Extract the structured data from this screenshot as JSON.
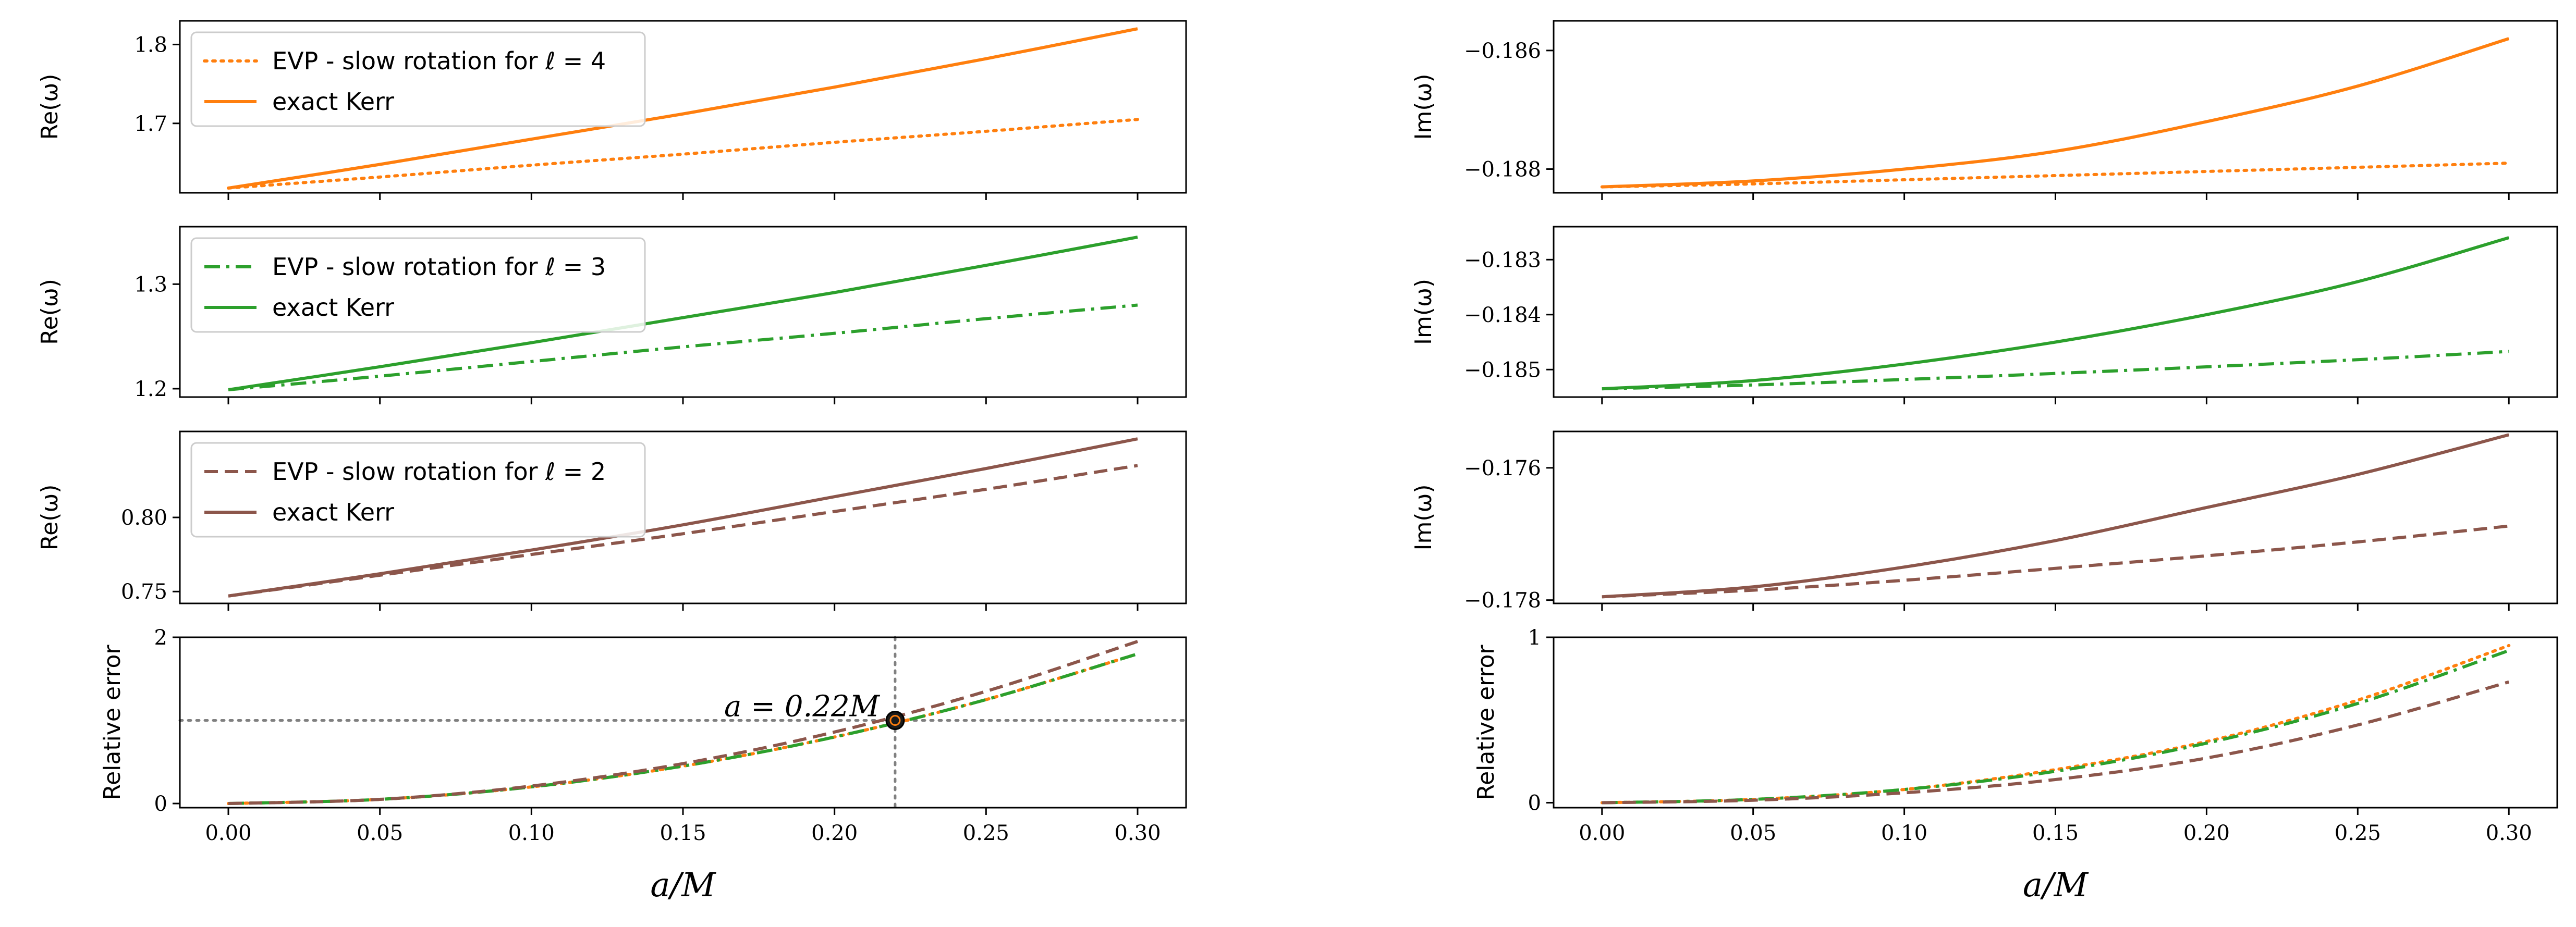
{
  "colors": {
    "l4": "#ff7f0e",
    "l3": "#2ca02c",
    "l2": "#8c564b",
    "ref": "#808080",
    "point": "#1a1a1a"
  },
  "chart_data": [
    {
      "id": "re_l4",
      "type": "line",
      "ylabel": "Re(ω)",
      "xlim": [
        -0.016,
        0.316
      ],
      "ylim": [
        1.612,
        1.83
      ],
      "yticks": [
        1.7,
        1.8
      ],
      "ytick_labels": [
        "1.7",
        "1.8"
      ],
      "legend": [
        {
          "label": "EVP - slow rotation for ℓ = 4",
          "style": "dotted",
          "color_key": "l4"
        },
        {
          "label": "exact Kerr",
          "style": "solid",
          "color_key": "l4"
        }
      ],
      "legend_position": "top-left",
      "series": [
        {
          "name": "EVP - slow rotation for ℓ = 4",
          "style": "dotted",
          "color_key": "l4",
          "x": [
            0.0,
            0.05,
            0.1,
            0.15,
            0.2,
            0.25,
            0.3
          ],
          "y": [
            1.618,
            1.632,
            1.647,
            1.661,
            1.676,
            1.69,
            1.705
          ]
        },
        {
          "name": "exact Kerr",
          "style": "solid",
          "color_key": "l4",
          "x": [
            0.0,
            0.05,
            0.1,
            0.15,
            0.2,
            0.25,
            0.3
          ],
          "y": [
            1.618,
            1.648,
            1.68,
            1.712,
            1.746,
            1.782,
            1.82
          ]
        }
      ]
    },
    {
      "id": "im_l4",
      "type": "line",
      "ylabel": "Im(ω)",
      "xlim": [
        -0.016,
        0.316
      ],
      "ylim": [
        -0.1884,
        -0.1855
      ],
      "yticks": [
        -0.188,
        -0.186
      ],
      "ytick_labels": [
        "−0.188",
        "−0.186"
      ],
      "series": [
        {
          "name": "EVP - slow rotation for ℓ = 4",
          "style": "dotted",
          "color_key": "l4",
          "x": [
            0.0,
            0.05,
            0.1,
            0.15,
            0.2,
            0.25,
            0.3
          ],
          "y": [
            -0.1883,
            -0.18825,
            -0.18818,
            -0.18811,
            -0.18804,
            -0.18797,
            -0.1879
          ]
        },
        {
          "name": "exact Kerr",
          "style": "solid",
          "color_key": "l4",
          "x": [
            0.0,
            0.05,
            0.1,
            0.15,
            0.2,
            0.25,
            0.3
          ],
          "y": [
            -0.1883,
            -0.1882,
            -0.188,
            -0.1877,
            -0.1872,
            -0.1866,
            -0.1858
          ]
        }
      ]
    },
    {
      "id": "re_l3",
      "type": "line",
      "ylabel": "Re(ω)",
      "xlim": [
        -0.016,
        0.316
      ],
      "ylim": [
        1.192,
        1.355
      ],
      "yticks": [
        1.2,
        1.3
      ],
      "ytick_labels": [
        "1.2",
        "1.3"
      ],
      "legend": [
        {
          "label": "EVP - slow rotation for ℓ = 3",
          "style": "dashdot",
          "color_key": "l3"
        },
        {
          "label": "exact Kerr",
          "style": "solid",
          "color_key": "l3"
        }
      ],
      "legend_position": "top-left",
      "series": [
        {
          "name": "EVP - slow rotation for ℓ = 3",
          "style": "dashdot",
          "color_key": "l3",
          "x": [
            0.0,
            0.05,
            0.1,
            0.15,
            0.2,
            0.25,
            0.3
          ],
          "y": [
            1.199,
            1.212,
            1.226,
            1.24,
            1.253,
            1.267,
            1.28
          ]
        },
        {
          "name": "exact Kerr",
          "style": "solid",
          "color_key": "l3",
          "x": [
            0.0,
            0.05,
            0.1,
            0.15,
            0.2,
            0.25,
            0.3
          ],
          "y": [
            1.199,
            1.221,
            1.244,
            1.268,
            1.292,
            1.318,
            1.345
          ]
        }
      ]
    },
    {
      "id": "im_l3",
      "type": "line",
      "ylabel": "Im(ω)",
      "xlim": [
        -0.016,
        0.316
      ],
      "ylim": [
        -0.1855,
        -0.1824
      ],
      "yticks": [
        -0.185,
        -0.184,
        -0.183
      ],
      "ytick_labels": [
        "−0.185",
        "−0.184",
        "−0.183"
      ],
      "series": [
        {
          "name": "EVP - slow rotation for ℓ = 3",
          "style": "dashdot",
          "color_key": "l3",
          "x": [
            0.0,
            0.05,
            0.1,
            0.15,
            0.2,
            0.25,
            0.3
          ],
          "y": [
            -0.18535,
            -0.18528,
            -0.18518,
            -0.18507,
            -0.18495,
            -0.18482,
            -0.18467
          ]
        },
        {
          "name": "exact Kerr",
          "style": "solid",
          "color_key": "l3",
          "x": [
            0.0,
            0.05,
            0.1,
            0.15,
            0.2,
            0.25,
            0.3
          ],
          "y": [
            -0.18535,
            -0.1852,
            -0.1849,
            -0.1845,
            -0.184,
            -0.1834,
            -0.1826
          ]
        }
      ]
    },
    {
      "id": "re_l2",
      "type": "line",
      "ylabel": "Re(ω)",
      "xlim": [
        -0.016,
        0.316
      ],
      "ylim": [
        0.742,
        0.858
      ],
      "yticks": [
        0.75,
        0.8
      ],
      "ytick_labels": [
        "0.75",
        "0.80"
      ],
      "legend": [
        {
          "label": "EVP - slow rotation for ℓ = 2",
          "style": "dashed",
          "color_key": "l2"
        },
        {
          "label": "exact Kerr",
          "style": "solid",
          "color_key": "l2"
        }
      ],
      "legend_position": "top-left",
      "series": [
        {
          "name": "EVP - slow rotation for ℓ = 2",
          "style": "dashed",
          "color_key": "l2",
          "x": [
            0.0,
            0.05,
            0.1,
            0.15,
            0.2,
            0.25,
            0.3
          ],
          "y": [
            0.747,
            0.761,
            0.775,
            0.789,
            0.804,
            0.819,
            0.835
          ]
        },
        {
          "name": "exact Kerr",
          "style": "solid",
          "color_key": "l2",
          "x": [
            0.0,
            0.05,
            0.1,
            0.15,
            0.2,
            0.25,
            0.3
          ],
          "y": [
            0.747,
            0.762,
            0.778,
            0.795,
            0.814,
            0.833,
            0.853
          ]
        }
      ]
    },
    {
      "id": "im_l2",
      "type": "line",
      "ylabel": "Im(ω)",
      "xlim": [
        -0.016,
        0.316
      ],
      "ylim": [
        -0.17805,
        -0.17545
      ],
      "yticks": [
        -0.178,
        -0.176
      ],
      "ytick_labels": [
        "−0.178",
        "−0.176"
      ],
      "series": [
        {
          "name": "EVP - slow rotation for ℓ = 2",
          "style": "dashed",
          "color_key": "l2",
          "x": [
            0.0,
            0.05,
            0.1,
            0.15,
            0.2,
            0.25,
            0.3
          ],
          "y": [
            -0.17795,
            -0.17785,
            -0.1777,
            -0.17752,
            -0.17733,
            -0.17712,
            -0.17688
          ]
        },
        {
          "name": "exact Kerr",
          "style": "solid",
          "color_key": "l2",
          "x": [
            0.0,
            0.05,
            0.1,
            0.15,
            0.2,
            0.25,
            0.3
          ],
          "y": [
            -0.17795,
            -0.1778,
            -0.1775,
            -0.1771,
            -0.1766,
            -0.1761,
            -0.1755
          ]
        }
      ]
    },
    {
      "id": "relerr_re",
      "type": "line",
      "ylabel": "Relative error",
      "xlabel": "a/M",
      "xlim": [
        -0.016,
        0.316
      ],
      "ylim": [
        -0.05,
        2.0
      ],
      "yticks": [
        0,
        2
      ],
      "ytick_labels": [
        "0",
        "2"
      ],
      "xticks": [
        0.0,
        0.05,
        0.1,
        0.15,
        0.2,
        0.25,
        0.3
      ],
      "xtick_labels": [
        "0.00",
        "0.05",
        "0.10",
        "0.15",
        "0.20",
        "0.25",
        "0.30"
      ],
      "reference_lines": {
        "hline_y": 1.0,
        "vline_x": 0.22
      },
      "annotation": {
        "text": "a = 0.22M",
        "x": 0.22,
        "y": 1.0
      },
      "series": [
        {
          "name": "ℓ = 4",
          "style": "dotted",
          "color_key": "l4",
          "x": [
            0.0,
            0.05,
            0.1,
            0.15,
            0.2,
            0.25,
            0.3
          ],
          "y": [
            0.0,
            0.05,
            0.2,
            0.45,
            0.8,
            1.25,
            1.8
          ]
        },
        {
          "name": "ℓ = 3",
          "style": "dashdot",
          "color_key": "l3",
          "x": [
            0.0,
            0.05,
            0.1,
            0.15,
            0.2,
            0.25,
            0.3
          ],
          "y": [
            0.0,
            0.05,
            0.2,
            0.45,
            0.8,
            1.25,
            1.8
          ]
        },
        {
          "name": "ℓ = 2",
          "style": "dashed",
          "color_key": "l2",
          "x": [
            0.0,
            0.05,
            0.1,
            0.15,
            0.2,
            0.25,
            0.3
          ],
          "y": [
            0.0,
            0.05,
            0.21,
            0.48,
            0.86,
            1.35,
            1.95
          ]
        }
      ]
    },
    {
      "id": "relerr_im",
      "type": "line",
      "ylabel": "Relative error",
      "xlabel": "a/M",
      "xlim": [
        -0.016,
        0.316
      ],
      "ylim": [
        -0.03,
        1.0
      ],
      "yticks": [
        0,
        1
      ],
      "ytick_labels": [
        "0",
        "1"
      ],
      "xticks": [
        0.0,
        0.05,
        0.1,
        0.15,
        0.2,
        0.25,
        0.3
      ],
      "xtick_labels": [
        "0.00",
        "0.05",
        "0.10",
        "0.15",
        "0.20",
        "0.25",
        "0.30"
      ],
      "series": [
        {
          "name": "ℓ = 4",
          "style": "dotted",
          "color_key": "l4",
          "x": [
            0.0,
            0.05,
            0.1,
            0.15,
            0.2,
            0.25,
            0.3
          ],
          "y": [
            0.0,
            0.02,
            0.08,
            0.2,
            0.37,
            0.62,
            0.95
          ]
        },
        {
          "name": "ℓ = 3",
          "style": "dashdot",
          "color_key": "l3",
          "x": [
            0.0,
            0.05,
            0.1,
            0.15,
            0.2,
            0.25,
            0.3
          ],
          "y": [
            0.0,
            0.02,
            0.08,
            0.19,
            0.36,
            0.6,
            0.92
          ]
        },
        {
          "name": "ℓ = 2",
          "style": "dashed",
          "color_key": "l2",
          "x": [
            0.0,
            0.05,
            0.1,
            0.15,
            0.2,
            0.25,
            0.3
          ],
          "y": [
            0.0,
            0.015,
            0.06,
            0.14,
            0.27,
            0.47,
            0.73
          ]
        }
      ]
    }
  ]
}
